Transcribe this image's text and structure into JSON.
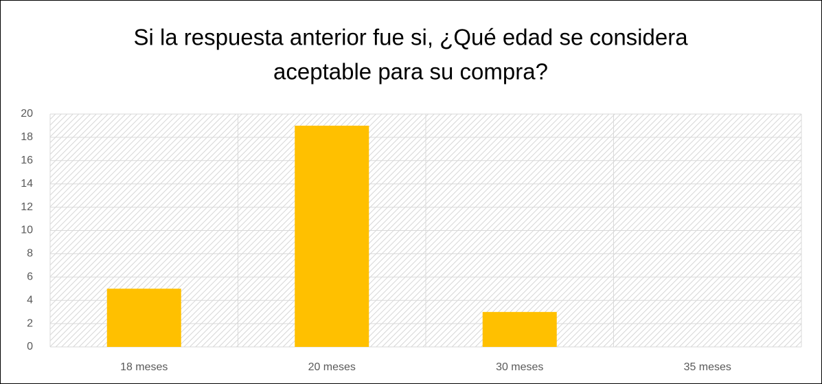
{
  "chart_data": {
    "type": "bar",
    "title": [
      "Si la respuesta anterior fue si, ¿Qué edad se considera",
      "aceptable para su compra?"
    ],
    "categories": [
      "18 meses",
      "20 meses",
      "30 meses",
      "35 meses"
    ],
    "values": [
      5,
      19,
      3,
      0
    ],
    "color": "#ffc000",
    "ylim": [
      0,
      20
    ],
    "yticks": [
      0,
      2,
      4,
      6,
      8,
      10,
      12,
      14,
      16,
      18,
      20
    ],
    "grid": true
  }
}
